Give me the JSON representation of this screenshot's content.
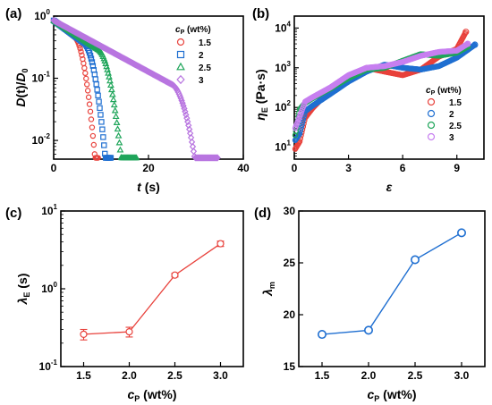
{
  "chart_data": [
    {
      "panel": "(a)",
      "type": "scatter",
      "xlabel": "t (s)",
      "ylabel": "D(t)/D0",
      "xlim": [
        0,
        40
      ],
      "ylim": [
        0.005,
        1
      ],
      "yscale": "log",
      "xticks": [
        "0",
        "20",
        "40"
      ],
      "yticks": [
        "10^-2",
        "10^-1",
        "10^0"
      ],
      "legend_title": "cP (wt%)",
      "legend_position": "top-right",
      "series": [
        {
          "name": "1.5",
          "color": "#e8413b",
          "marker": "circle",
          "tend": 9.5,
          "rate": 0.14,
          "fall_start": 4.5,
          "fall_k": 0.48
        },
        {
          "name": "2",
          "color": "#1f6fd1",
          "marker": "square",
          "tend": 12.2,
          "rate": 0.13,
          "fall_start": 6.5,
          "fall_k": 0.42
        },
        {
          "name": "2.5",
          "color": "#1fa55a",
          "marker": "triangle",
          "tend": 17.5,
          "rate": 0.115,
          "fall_start": 9.5,
          "fall_k": 0.34
        },
        {
          "name": "3",
          "color": "#b875e0",
          "marker": "diamond",
          "tend": 34.6,
          "rate": 0.095,
          "fall_start": 25,
          "fall_k": 0.22
        }
      ]
    },
    {
      "panel": "(b)",
      "type": "scatter",
      "xlabel": "ε",
      "ylabel": "ηE (Pa·s)",
      "xlim": [
        0,
        10.5
      ],
      "ylim": [
        5,
        20000
      ],
      "yscale": "log",
      "xticks": [
        "0",
        "3",
        "6",
        "9"
      ],
      "yticks": [
        "10^1",
        "10^2",
        "10^3",
        "10^4"
      ],
      "legend_title": "cP (wt%)",
      "legend_position": "bottom-right",
      "series": [
        {
          "name": "1.5",
          "color": "#e8413b",
          "marker": "circle",
          "points": [
            [
              0.05,
              9
            ],
            [
              0.3,
              14
            ],
            [
              0.6,
              55
            ],
            [
              1,
              95
            ],
            [
              2,
              280
            ],
            [
              3,
              600
            ],
            [
              4,
              1000
            ],
            [
              5,
              800
            ],
            [
              6,
              650
            ],
            [
              7,
              900
            ],
            [
              8,
              1900
            ],
            [
              9,
              3000
            ],
            [
              9.5,
              8000
            ]
          ]
        },
        {
          "name": "2",
          "color": "#1f6fd1",
          "marker": "circle",
          "points": [
            [
              0.05,
              15
            ],
            [
              0.3,
              22
            ],
            [
              0.6,
              80
            ],
            [
              1,
              110
            ],
            [
              2,
              220
            ],
            [
              3,
              450
            ],
            [
              4,
              800
            ],
            [
              5,
              1200
            ],
            [
              6,
              1000
            ],
            [
              7,
              900
            ],
            [
              8,
              1100
            ],
            [
              9,
              1800
            ],
            [
              10,
              3800
            ]
          ]
        },
        {
          "name": "2.5",
          "color": "#1fa55a",
          "marker": "circle",
          "points": [
            [
              0.05,
              20
            ],
            [
              0.3,
              90
            ],
            [
              0.6,
              130
            ],
            [
              1,
              170
            ],
            [
              2,
              300
            ],
            [
              3,
              550
            ],
            [
              4,
              900
            ],
            [
              5,
              1000
            ],
            [
              6,
              1500
            ],
            [
              7,
              2200
            ],
            [
              8,
              2000
            ],
            [
              9,
              2400
            ],
            [
              9.6,
              3400
            ]
          ]
        },
        {
          "name": "3",
          "color": "#c77ff0",
          "marker": "circle",
          "points": [
            [
              0.05,
              30
            ],
            [
              0.3,
              60
            ],
            [
              0.6,
              140
            ],
            [
              1,
              180
            ],
            [
              2,
              320
            ],
            [
              3,
              650
            ],
            [
              4,
              1000
            ],
            [
              5,
              1100
            ],
            [
              6,
              1400
            ],
            [
              7,
              2000
            ],
            [
              8,
              2500
            ],
            [
              9,
              2700
            ],
            [
              9.6,
              4000
            ]
          ]
        }
      ]
    },
    {
      "panel": "(c)",
      "type": "line",
      "xlabel": "cP (wt%)",
      "ylabel": "λE (s)",
      "xlim": [
        1.25,
        3.25
      ],
      "ylim": [
        0.1,
        10
      ],
      "yscale": "log",
      "xticks": [
        "1.5",
        "2.0",
        "2.5",
        "3.0"
      ],
      "yticks": [
        "10^-1",
        "10^0",
        "10^1"
      ],
      "x": [
        1.5,
        2.0,
        2.5,
        3.0
      ],
      "y": [
        0.26,
        0.28,
        1.5,
        3.8
      ],
      "yerr_low": [
        0.22,
        0.24,
        1.42,
        3.5
      ],
      "yerr_high": [
        0.3,
        0.32,
        1.58,
        4.1
      ],
      "color": "#e8413b",
      "marker": "circle-open"
    },
    {
      "panel": "(d)",
      "type": "line",
      "xlabel": "cP (wt%)",
      "ylabel": "λm",
      "xlim": [
        1.25,
        3.25
      ],
      "ylim": [
        15,
        30
      ],
      "xticks": [
        "1.5",
        "2.0",
        "2.5",
        "3.0"
      ],
      "yticks": [
        "15",
        "20",
        "25",
        "30"
      ],
      "x": [
        1.5,
        2.0,
        2.5,
        3.0
      ],
      "y": [
        18.1,
        18.5,
        25.3,
        27.9
      ],
      "color": "#1f6fd1",
      "marker": "circle-open"
    }
  ]
}
